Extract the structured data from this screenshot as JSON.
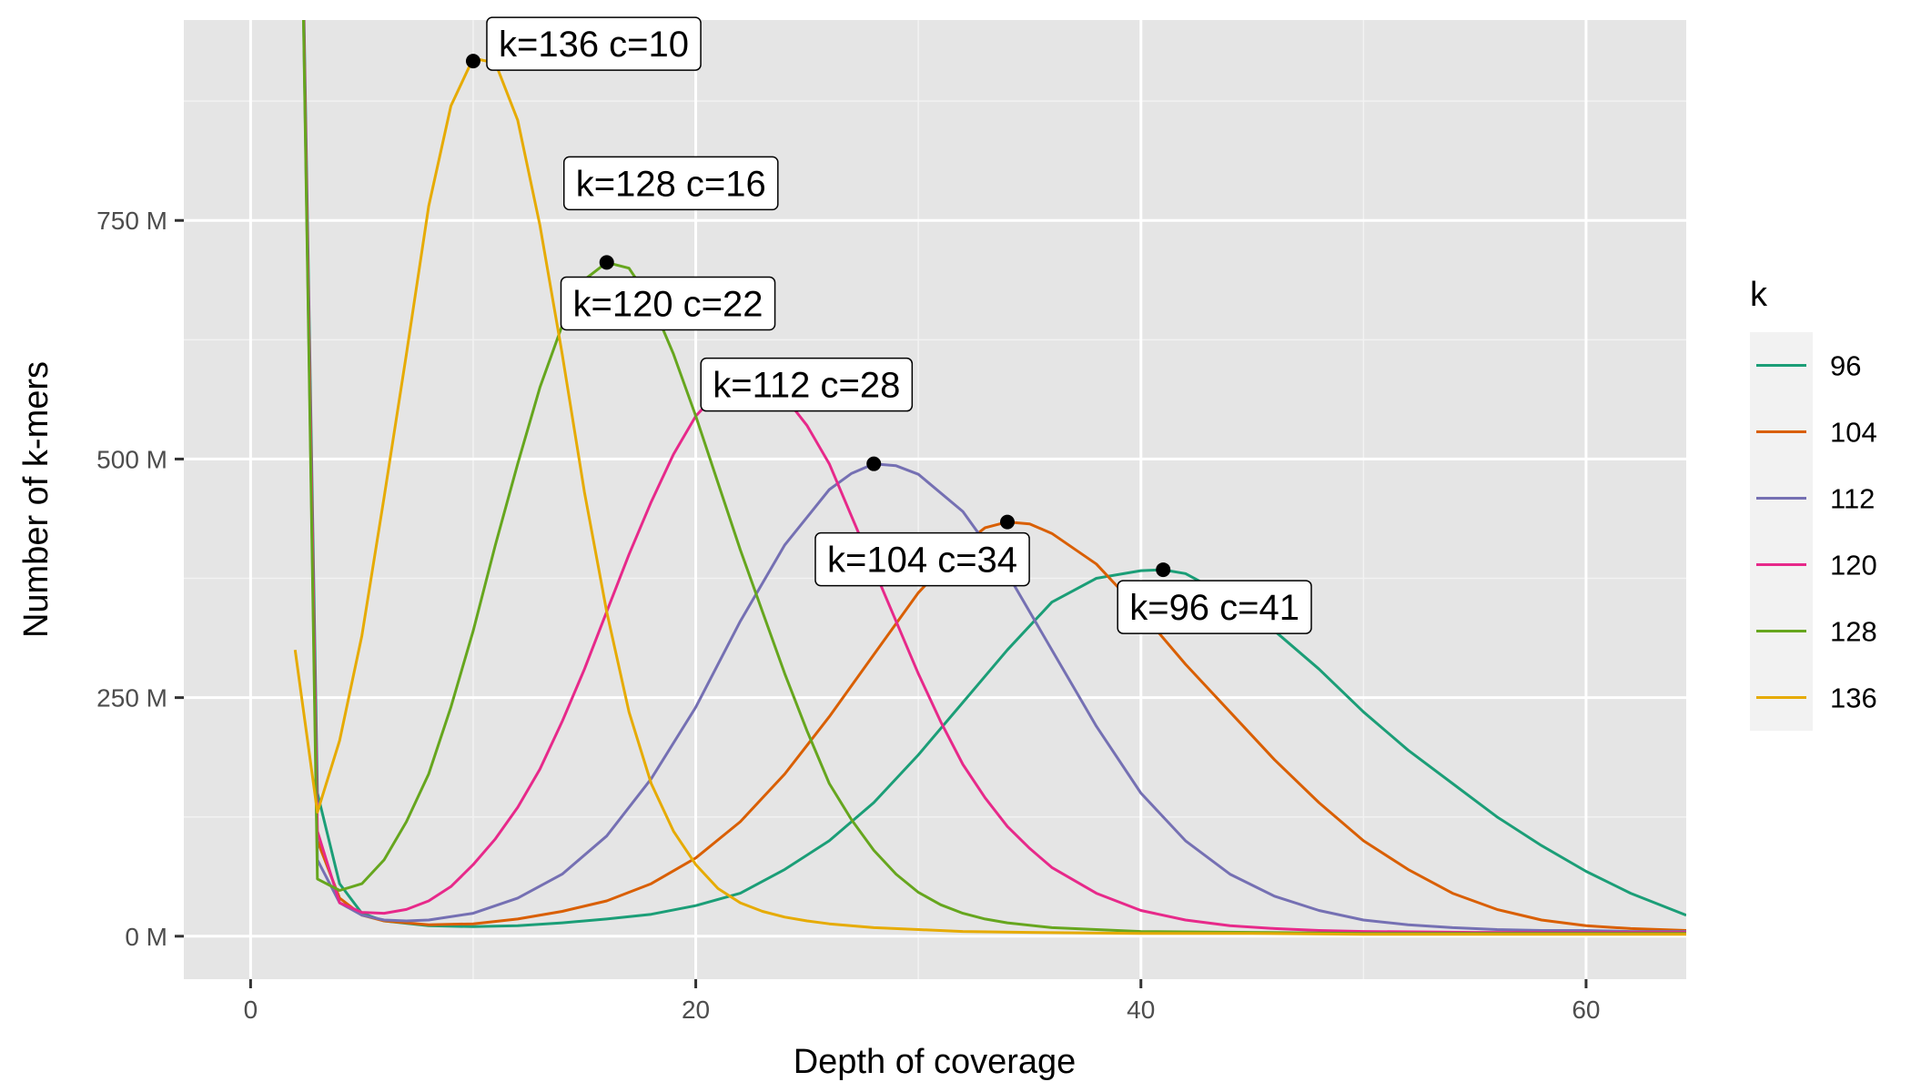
{
  "chart_data": {
    "type": "line",
    "title": "",
    "xlabel": "Depth of coverage",
    "ylabel": "Number of k-mers",
    "xlim": [
      -3,
      64.5
    ],
    "ylim": [
      -45,
      960
    ],
    "x_ticks": [
      0,
      20,
      40,
      60
    ],
    "x_tick_labels": [
      "0",
      "20",
      "40",
      "60"
    ],
    "y_ticks": [
      0,
      250,
      500,
      750
    ],
    "y_tick_labels": [
      "0 M",
      "250 M",
      "500 M",
      "750 M"
    ],
    "y_unit": "M",
    "grid": true,
    "legend": {
      "title": "k",
      "position": "right"
    },
    "colors": {
      "panel": "#e5e5e5",
      "grid": "#ffffff",
      "96": "#1b9e77",
      "104": "#d95f02",
      "112": "#7570b3",
      "120": "#e7298a",
      "128": "#66a61e",
      "136": "#e6ab02"
    },
    "series": [
      {
        "name": "96",
        "color": "#1b9e77",
        "x": [
          2,
          3,
          4,
          5,
          6,
          8,
          10,
          12,
          14,
          16,
          18,
          20,
          22,
          24,
          26,
          28,
          30,
          32,
          34,
          36,
          38,
          40,
          41,
          42,
          44,
          46,
          48,
          50,
          52,
          54,
          56,
          58,
          60,
          62,
          64.5
        ],
        "y": [
          1500,
          150,
          55,
          24,
          16,
          11,
          10,
          11,
          14,
          18,
          23,
          32,
          45,
          70,
          100,
          140,
          190,
          245,
          300,
          350,
          375,
          383,
          384,
          380,
          355,
          320,
          280,
          235,
          195,
          160,
          125,
          95,
          68,
          45,
          22
        ]
      },
      {
        "name": "104",
        "color": "#d95f02",
        "x": [
          2,
          3,
          4,
          5,
          6,
          8,
          10,
          12,
          14,
          16,
          18,
          20,
          22,
          24,
          26,
          28,
          30,
          32,
          33,
          34,
          35,
          36,
          38,
          40,
          42,
          44,
          46,
          48,
          50,
          52,
          54,
          56,
          58,
          60,
          62,
          64.5
        ],
        "y": [
          1500,
          100,
          40,
          22,
          16,
          12,
          13,
          18,
          26,
          37,
          55,
          82,
          120,
          170,
          230,
          295,
          360,
          410,
          428,
          434,
          432,
          422,
          390,
          340,
          285,
          235,
          185,
          140,
          100,
          70,
          45,
          28,
          17,
          11,
          8,
          6
        ]
      },
      {
        "name": "112",
        "color": "#7570b3",
        "x": [
          2,
          3,
          4,
          5,
          6,
          7,
          8,
          10,
          12,
          14,
          16,
          18,
          20,
          22,
          24,
          26,
          27,
          28,
          29,
          30,
          32,
          34,
          36,
          38,
          40,
          42,
          44,
          46,
          48,
          50,
          52,
          54,
          56,
          58,
          60,
          62,
          64.5
        ],
        "y": [
          1500,
          80,
          35,
          22,
          17,
          16,
          17,
          24,
          40,
          65,
          105,
          165,
          240,
          330,
          410,
          468,
          485,
          495,
          493,
          484,
          445,
          380,
          300,
          220,
          150,
          100,
          65,
          42,
          27,
          17,
          12,
          9,
          7,
          6,
          6,
          5,
          5
        ]
      },
      {
        "name": "120",
        "color": "#e7298a",
        "x": [
          2,
          3,
          4,
          5,
          6,
          7,
          8,
          9,
          10,
          11,
          12,
          13,
          14,
          15,
          16,
          17,
          18,
          19,
          20,
          21,
          22,
          23,
          24,
          25,
          26,
          27,
          28,
          29,
          30,
          31,
          32,
          33,
          34,
          35,
          36,
          38,
          40,
          42,
          44,
          46,
          48,
          50,
          55,
          60,
          64.5
        ],
        "y": [
          1500,
          110,
          35,
          25,
          24,
          28,
          37,
          52,
          75,
          102,
          135,
          175,
          225,
          280,
          340,
          400,
          455,
          505,
          545,
          570,
          580,
          578,
          565,
          535,
          495,
          440,
          385,
          330,
          275,
          225,
          180,
          145,
          115,
          92,
          72,
          45,
          27,
          17,
          11,
          8,
          6,
          5,
          4,
          4,
          4
        ]
      },
      {
        "name": "128",
        "color": "#66a61e",
        "x": [
          2,
          3,
          4,
          5,
          6,
          7,
          8,
          9,
          10,
          11,
          12,
          13,
          14,
          15,
          16,
          17,
          18,
          19,
          20,
          21,
          22,
          23,
          24,
          25,
          26,
          27,
          28,
          29,
          30,
          31,
          32,
          33,
          34,
          36,
          38,
          40,
          45,
          50,
          55,
          60,
          64.5
        ],
        "y": [
          1500,
          60,
          48,
          55,
          80,
          120,
          170,
          240,
          320,
          410,
          495,
          575,
          640,
          688,
          706,
          700,
          665,
          610,
          545,
          475,
          405,
          340,
          275,
          215,
          160,
          122,
          90,
          65,
          46,
          33,
          24,
          18,
          14,
          9,
          7,
          5,
          4,
          3,
          3,
          3,
          3
        ]
      },
      {
        "name": "136",
        "color": "#e6ab02",
        "x": [
          2,
          3,
          4,
          5,
          6,
          7,
          8,
          9,
          10,
          11,
          12,
          13,
          14,
          15,
          16,
          17,
          18,
          19,
          20,
          21,
          22,
          23,
          24,
          25,
          26,
          28,
          30,
          32,
          35,
          40,
          45,
          50,
          55,
          60,
          64.5
        ],
        "y": [
          300,
          130,
          205,
          315,
          460,
          610,
          765,
          870,
          920,
          915,
          855,
          745,
          610,
          465,
          340,
          235,
          160,
          110,
          75,
          50,
          35,
          26,
          20,
          16,
          13,
          9,
          7,
          5,
          4,
          3,
          3,
          2,
          2,
          2,
          2
        ]
      }
    ],
    "annotations": [
      {
        "series": "136",
        "x": 10,
        "y": 917,
        "label": "k=136 c=10"
      },
      {
        "series": "128",
        "x": 16,
        "y": 706,
        "label": "k=128 c=16"
      },
      {
        "series": "120",
        "x": 22,
        "y": 580,
        "label": "k=120 c=22"
      },
      {
        "series": "112",
        "x": 28,
        "y": 495,
        "label": "k=112 c=28"
      },
      {
        "series": "104",
        "x": 34,
        "y": 434,
        "label": "k=104 c=34"
      },
      {
        "series": "96",
        "x": 41,
        "y": 384,
        "label": "k=96 c=41"
      }
    ]
  }
}
